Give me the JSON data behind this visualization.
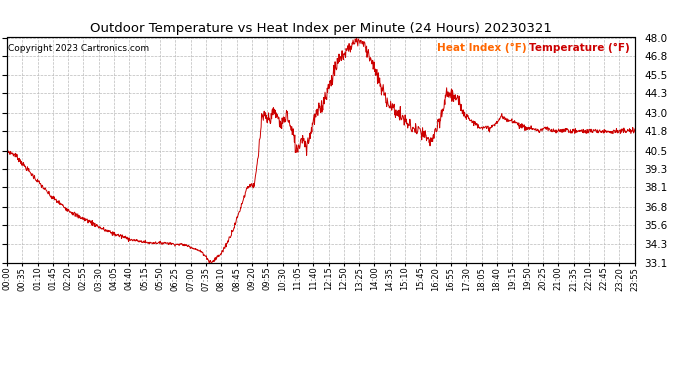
{
  "title": "Outdoor Temperature vs Heat Index per Minute (24 Hours) 20230321",
  "copyright_text": "Copyright 2023 Cartronics.com",
  "legend_heat_index": "Heat Index (°F)",
  "legend_temperature": "Temperature (°F)",
  "heat_index_color": "#ff6600",
  "line_color": "#cc0000",
  "background_color": "#ffffff",
  "grid_color": "#bbbbbb",
  "ylim_min": 33.1,
  "ylim_max": 48.0,
  "yticks": [
    33.1,
    34.3,
    35.6,
    36.8,
    38.1,
    39.3,
    40.5,
    41.8,
    43.0,
    44.3,
    45.5,
    46.8,
    48.0
  ],
  "x_tick_labels": [
    "00:00",
    "00:35",
    "01:10",
    "01:45",
    "02:20",
    "02:55",
    "03:30",
    "04:05",
    "04:40",
    "05:15",
    "05:50",
    "06:25",
    "07:00",
    "07:35",
    "08:10",
    "08:45",
    "09:20",
    "09:55",
    "10:30",
    "11:05",
    "11:40",
    "12:15",
    "12:50",
    "13:25",
    "14:00",
    "14:35",
    "15:10",
    "15:45",
    "16:20",
    "16:55",
    "17:30",
    "18:05",
    "18:40",
    "19:15",
    "19:50",
    "20:25",
    "21:00",
    "21:35",
    "22:10",
    "22:45",
    "23:20",
    "23:55"
  ],
  "keypoints": [
    [
      0,
      40.5
    ],
    [
      20,
      40.2
    ],
    [
      40,
      39.5
    ],
    [
      70,
      38.5
    ],
    [
      100,
      37.5
    ],
    [
      130,
      36.8
    ],
    [
      160,
      36.2
    ],
    [
      190,
      35.8
    ],
    [
      220,
      35.3
    ],
    [
      245,
      35.0
    ],
    [
      265,
      34.8
    ],
    [
      285,
      34.6
    ],
    [
      305,
      34.5
    ],
    [
      325,
      34.4
    ],
    [
      345,
      34.4
    ],
    [
      365,
      34.4
    ],
    [
      385,
      34.3
    ],
    [
      400,
      34.3
    ],
    [
      415,
      34.2
    ],
    [
      430,
      34.0
    ],
    [
      445,
      33.8
    ],
    [
      455,
      33.5
    ],
    [
      462,
      33.2
    ],
    [
      468,
      33.1
    ],
    [
      475,
      33.3
    ],
    [
      490,
      33.7
    ],
    [
      505,
      34.5
    ],
    [
      520,
      35.5
    ],
    [
      535,
      36.8
    ],
    [
      548,
      38.0
    ],
    [
      558,
      38.3
    ],
    [
      565,
      38.1
    ],
    [
      575,
      40.3
    ],
    [
      582,
      42.5
    ],
    [
      590,
      42.8
    ],
    [
      597,
      42.5
    ],
    [
      605,
      42.9
    ],
    [
      612,
      43.0
    ],
    [
      619,
      42.7
    ],
    [
      626,
      42.2
    ],
    [
      633,
      42.5
    ],
    [
      640,
      43.0
    ],
    [
      648,
      42.0
    ],
    [
      655,
      41.5
    ],
    [
      662,
      40.5
    ],
    [
      669,
      41.0
    ],
    [
      676,
      41.5
    ],
    [
      683,
      40.8
    ],
    [
      690,
      41.2
    ],
    [
      700,
      42.5
    ],
    [
      710,
      43.0
    ],
    [
      720,
      43.5
    ],
    [
      730,
      44.3
    ],
    [
      745,
      45.5
    ],
    [
      758,
      46.5
    ],
    [
      768,
      46.8
    ],
    [
      778,
      47.2
    ],
    [
      788,
      47.5
    ],
    [
      798,
      47.8
    ],
    [
      808,
      47.8
    ],
    [
      815,
      47.6
    ],
    [
      823,
      47.2
    ],
    [
      833,
      46.5
    ],
    [
      845,
      45.5
    ],
    [
      858,
      44.5
    ],
    [
      875,
      43.5
    ],
    [
      892,
      43.0
    ],
    [
      910,
      42.5
    ],
    [
      925,
      42.0
    ],
    [
      940,
      41.8
    ],
    [
      955,
      41.5
    ],
    [
      965,
      41.0
    ],
    [
      975,
      41.5
    ],
    [
      985,
      42.0
    ],
    [
      995,
      43.0
    ],
    [
      1005,
      44.3
    ],
    [
      1015,
      44.3
    ],
    [
      1025,
      44.0
    ],
    [
      1035,
      43.5
    ],
    [
      1048,
      43.0
    ],
    [
      1060,
      42.5
    ],
    [
      1075,
      42.2
    ],
    [
      1090,
      42.0
    ],
    [
      1105,
      42.0
    ],
    [
      1118,
      42.3
    ],
    [
      1130,
      42.8
    ],
    [
      1143,
      42.5
    ],
    [
      1158,
      42.5
    ],
    [
      1172,
      42.2
    ],
    [
      1185,
      42.0
    ],
    [
      1200,
      42.0
    ],
    [
      1215,
      41.8
    ],
    [
      1230,
      42.0
    ],
    [
      1245,
      41.8
    ],
    [
      1260,
      41.8
    ],
    [
      1275,
      41.9
    ],
    [
      1290,
      41.8
    ],
    [
      1305,
      41.8
    ],
    [
      1320,
      41.8
    ],
    [
      1340,
      41.8
    ],
    [
      1360,
      41.8
    ],
    [
      1380,
      41.8
    ],
    [
      1400,
      41.8
    ],
    [
      1420,
      41.8
    ],
    [
      1435,
      41.8
    ]
  ]
}
